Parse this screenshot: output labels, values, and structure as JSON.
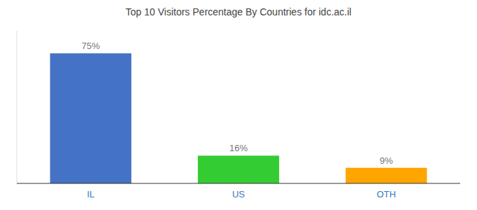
{
  "chart_data": {
    "type": "bar",
    "title": "Top 10 Visitors Percentage By Countries for idc.ac.il",
    "categories": [
      "IL",
      "US",
      "OTH"
    ],
    "values": [
      75,
      16,
      9
    ],
    "value_labels": [
      "75%",
      "16%",
      "9%"
    ],
    "colors": [
      "#4472C4",
      "#33CC33",
      "#FFA500"
    ],
    "ylim": [
      0,
      88
    ],
    "data_labels": true,
    "tick_labels": "x"
  }
}
